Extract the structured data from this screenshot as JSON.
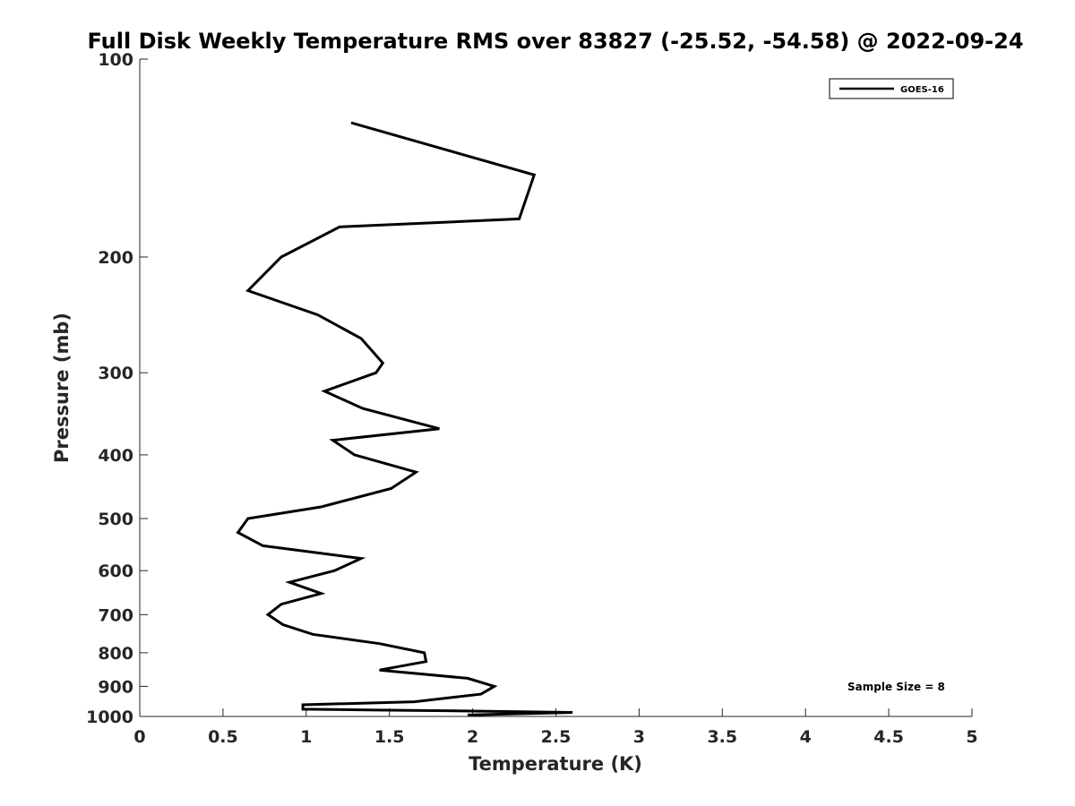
{
  "chart_data": {
    "type": "line",
    "title": "Full Disk Weekly Temperature RMS over 83827 (-25.52, -54.58) @ 2022-09-24",
    "xlabel": "Temperature (K)",
    "ylabel": "Pressure (mb)",
    "xlim": [
      0,
      5
    ],
    "ylim": [
      100,
      1000
    ],
    "y_scale": "log",
    "y_reversed": true,
    "grid": false,
    "legend_position": "top-right",
    "x_ticks": [
      "0",
      "0.5",
      "1",
      "1.5",
      "2",
      "2.5",
      "3",
      "3.5",
      "4",
      "4.5",
      "5"
    ],
    "y_ticks": [
      "100",
      "200",
      "300",
      "400",
      "500",
      "600",
      "700",
      "800",
      "900",
      "1000"
    ],
    "series": [
      {
        "name": "GOES-16",
        "color": "#000000",
        "x": [
          1.27,
          2.37,
          2.28,
          1.2,
          0.85,
          0.65,
          1.07,
          1.33,
          1.46,
          1.42,
          1.11,
          1.34,
          1.8,
          1.16,
          1.29,
          1.66,
          1.51,
          1.09,
          0.65,
          0.59,
          0.74,
          1.33,
          1.17,
          0.9,
          1.09,
          0.85,
          0.77,
          0.86,
          1.04,
          1.44,
          1.71,
          1.72,
          1.44,
          1.97,
          2.13,
          2.05,
          1.65,
          0.98,
          0.98,
          1.43,
          2.1,
          2.6,
          1.97
        ],
        "y": [
          125,
          150,
          175,
          180,
          200,
          225,
          245,
          266,
          290,
          300,
          320,
          340,
          365,
          380,
          400,
          425,
          450,
          480,
          500,
          525,
          550,
          575,
          600,
          625,
          650,
          675,
          700,
          725,
          750,
          775,
          800,
          825,
          850,
          875,
          900,
          925,
          950,
          960,
          975,
          978,
          982,
          986,
          995
        ]
      }
    ],
    "annotations": [
      "Sample Size = 8"
    ]
  }
}
